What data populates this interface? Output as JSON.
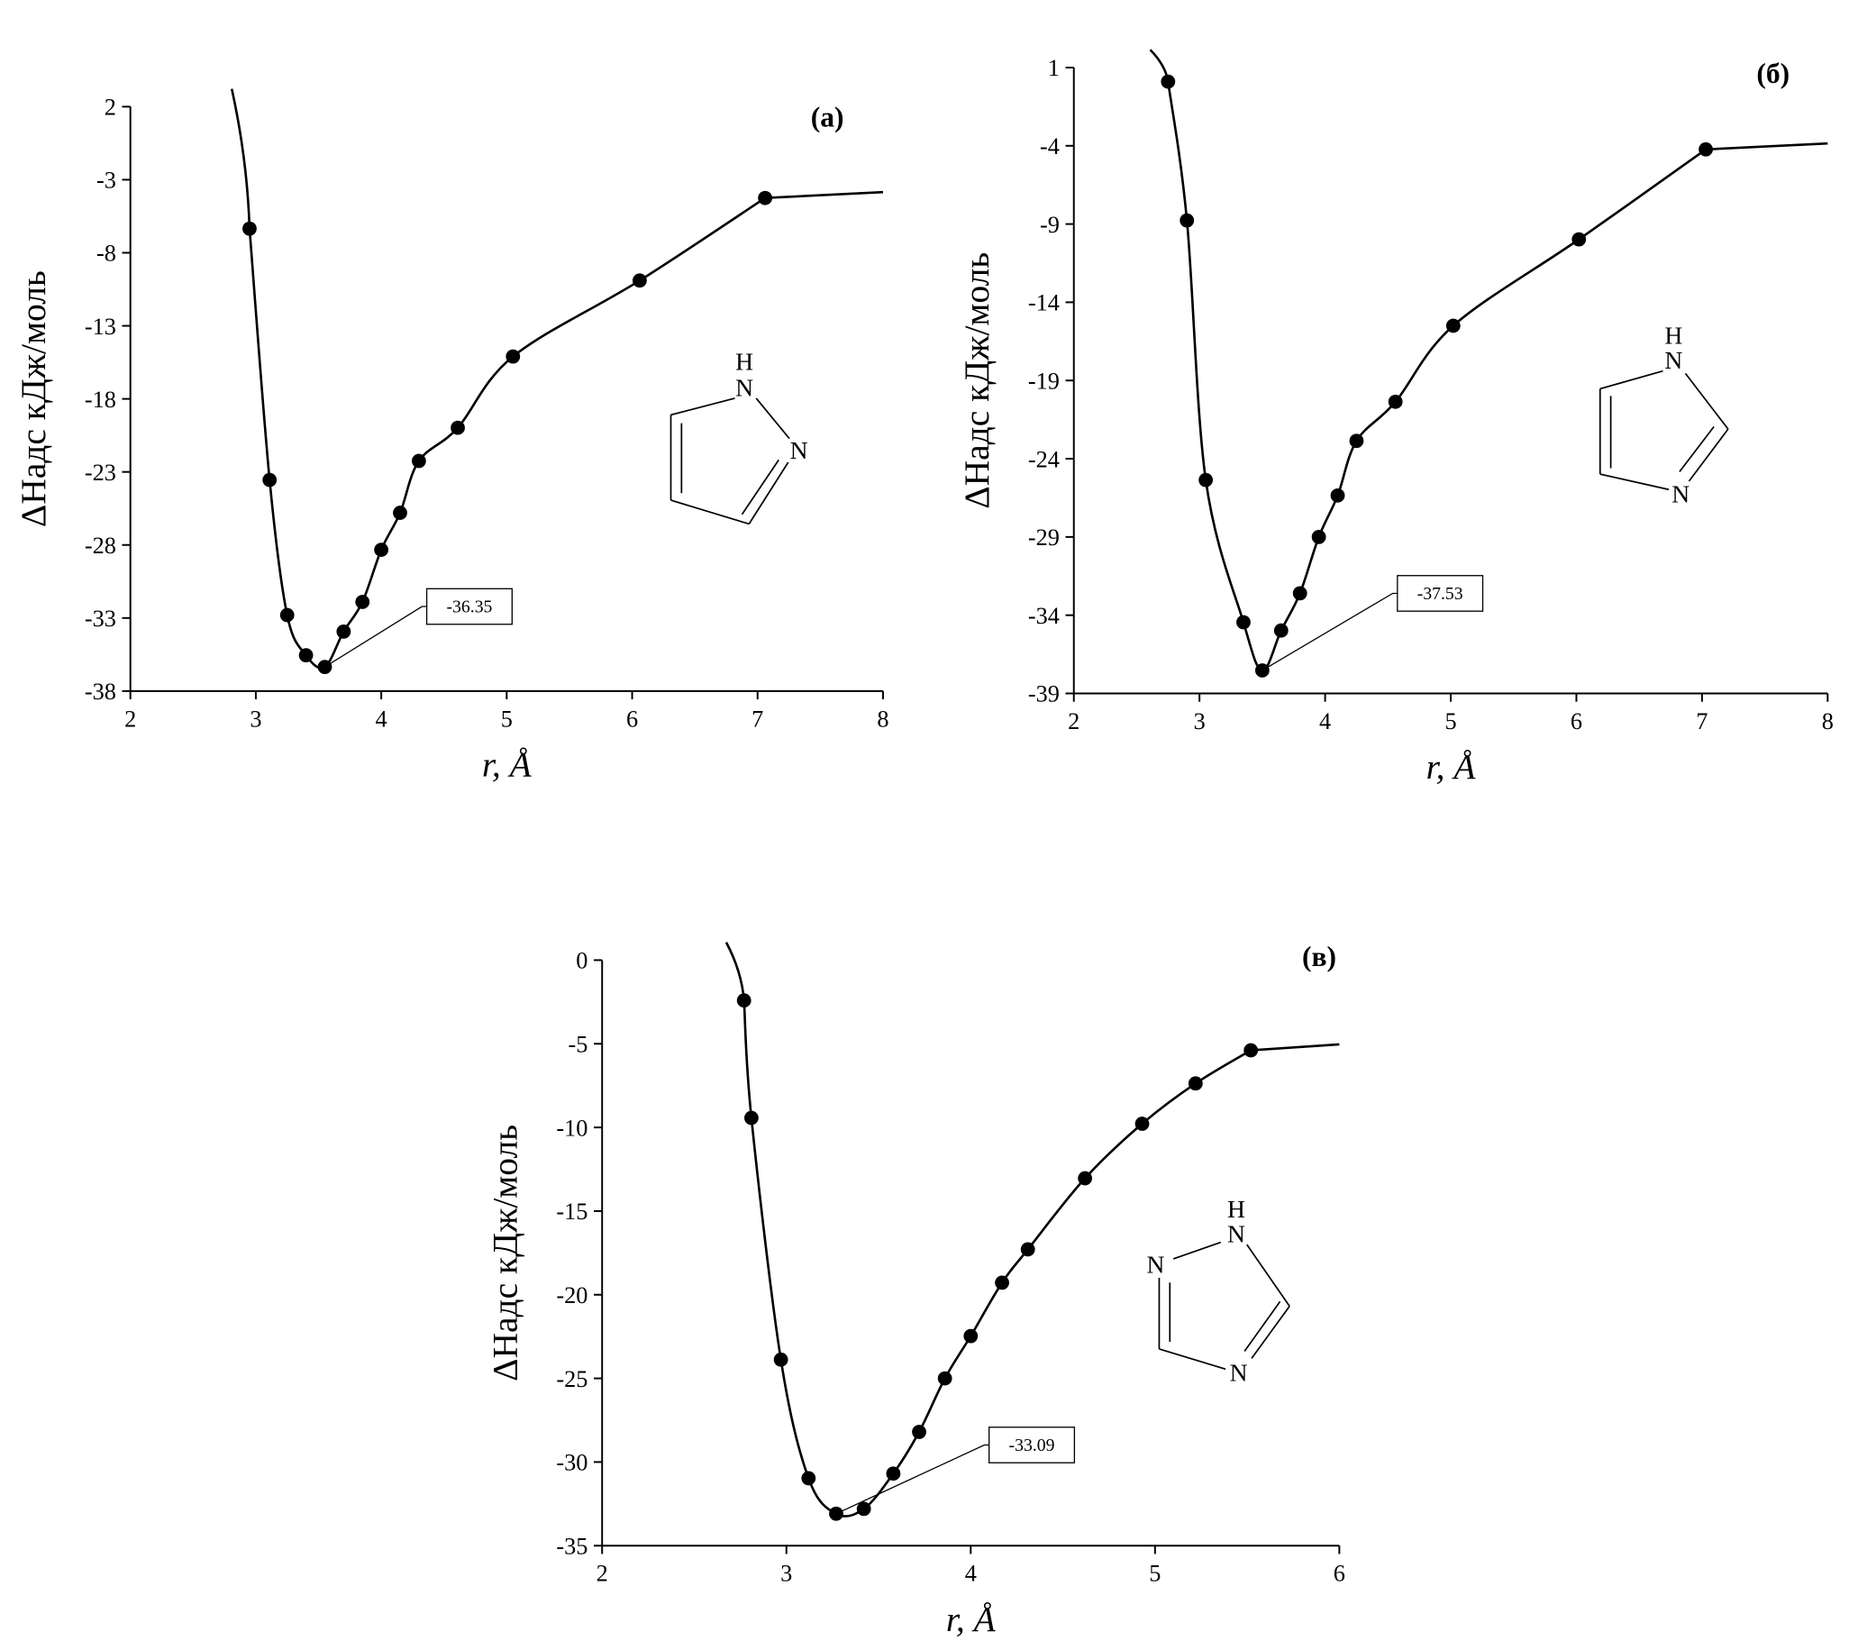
{
  "chart_data": [
    {
      "type": "line",
      "title": "(а)",
      "xlabel": "r, Å",
      "ylabel": "ΔHадс кДж/моль",
      "x": [
        2.95,
        3.11,
        3.25,
        3.4,
        3.55,
        3.7,
        3.85,
        4.0,
        4.15,
        4.3,
        4.61,
        5.05,
        6.06,
        7.06
      ],
      "values": [
        -6.35,
        -23.55,
        -32.8,
        -35.55,
        -36.35,
        -33.93,
        -31.9,
        -28.33,
        -25.8,
        -22.25,
        -19.98,
        -15.1,
        -9.9,
        -4.25
      ],
      "value_labels": [
        null,
        null,
        null,
        null,
        "-36.35",
        null,
        null,
        null,
        null,
        null,
        null,
        null,
        null,
        null
      ],
      "color": "#000000",
      "xlim": [
        2,
        8
      ],
      "xticks": [
        2,
        3,
        4,
        5,
        6,
        7,
        8
      ],
      "ylim": [
        -38,
        2
      ],
      "yticks": [
        2,
        -3,
        -8,
        -13,
        -18,
        -23,
        -28,
        -33,
        -38
      ],
      "molecule_atoms": [
        "H",
        "N",
        "N"
      ]
    },
    {
      "type": "line",
      "title": "(б)",
      "xlabel": "r, Å",
      "ylabel": "ΔHадс кДж/моль",
      "x": [
        2.75,
        2.9,
        3.05,
        3.35,
        3.5,
        3.65,
        3.8,
        3.95,
        4.1,
        4.25,
        4.56,
        5.02,
        6.02,
        7.03
      ],
      "values": [
        0.1,
        -8.77,
        -25.36,
        -34.45,
        -37.53,
        -34.98,
        -32.6,
        -29,
        -26.35,
        -22.86,
        -20.36,
        -15.5,
        -9.98,
        -4.23
      ],
      "value_labels": [
        null,
        null,
        null,
        null,
        "-37.53",
        null,
        null,
        null,
        null,
        null,
        null,
        null,
        null,
        null
      ],
      "color": "#000000",
      "xlim": [
        2,
        8
      ],
      "xticks": [
        2,
        3,
        4,
        5,
        6,
        7,
        8
      ],
      "ylim": [
        -39,
        1
      ],
      "yticks": [
        1,
        -4,
        -9,
        -14,
        -19,
        -24,
        -29,
        -34,
        -39
      ],
      "molecule_atoms": [
        "H",
        "N",
        "N"
      ]
    },
    {
      "type": "line",
      "title": "(в)",
      "xlabel": "r, Å",
      "ylabel": "ΔHадс кДж/моль",
      "x": [
        2.77,
        2.81,
        2.97,
        3.12,
        3.27,
        3.42,
        3.58,
        3.72,
        3.86,
        4.0,
        4.17,
        4.31,
        4.62,
        4.93,
        5.22,
        5.52
      ],
      "values": [
        -2.41,
        -9.43,
        -23.88,
        -30.97,
        -33.09,
        -32.8,
        -30.69,
        -28.2,
        -25,
        -22.47,
        -19.28,
        -17.29,
        -13.04,
        -9.78,
        -7.37,
        -5.39
      ],
      "value_labels": [
        null,
        null,
        null,
        null,
        "-33.09",
        null,
        null,
        null,
        null,
        null,
        null,
        null,
        null,
        null,
        null,
        null
      ],
      "color": "#000000",
      "xlim": [
        2,
        6
      ],
      "xticks": [
        2,
        3,
        4,
        5,
        6
      ],
      "ylim": [
        -35,
        0
      ],
      "yticks": [
        0,
        -5,
        -10,
        -15,
        -20,
        -25,
        -30,
        -35
      ],
      "molecule_atoms": [
        "H",
        "N",
        "N",
        "N"
      ]
    }
  ]
}
